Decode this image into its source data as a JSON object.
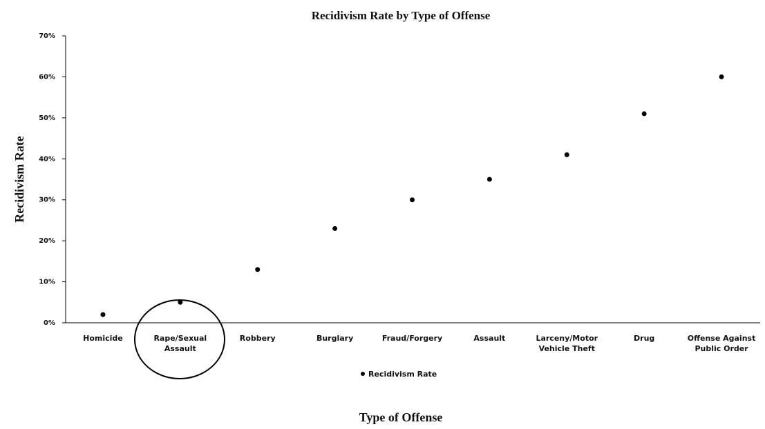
{
  "chart_data": {
    "type": "scatter",
    "title": "Recidivism Rate by Type of Offense",
    "x_label": "Type of Offense",
    "y_label": "Recidivism Rate",
    "categories": [
      "Homicide",
      "Rape/Sexual\nAssault",
      "Robbery",
      "Burglary",
      "Fraud/Forgery",
      "Assault",
      "Larceny/Motor\nVehicle Theft",
      "Drug",
      "Offense Against\nPublic Order"
    ],
    "series": [
      {
        "name": "Recidivism Rate",
        "color": "#000000",
        "values": [
          2,
          5,
          13,
          23,
          30,
          35,
          41,
          51,
          60
        ]
      }
    ],
    "ylim": [
      0,
      70
    ],
    "yticks": [
      {
        "value": 0,
        "label": "0%"
      },
      {
        "value": 10,
        "label": "10%"
      },
      {
        "value": 20,
        "label": "20%"
      },
      {
        "value": 30,
        "label": "30%"
      },
      {
        "value": 40,
        "label": "40%"
      },
      {
        "value": 50,
        "label": "50%"
      },
      {
        "value": 60,
        "label": "60%"
      },
      {
        "value": 70,
        "label": "70%"
      }
    ],
    "legend": "bottom",
    "grid": false
  }
}
